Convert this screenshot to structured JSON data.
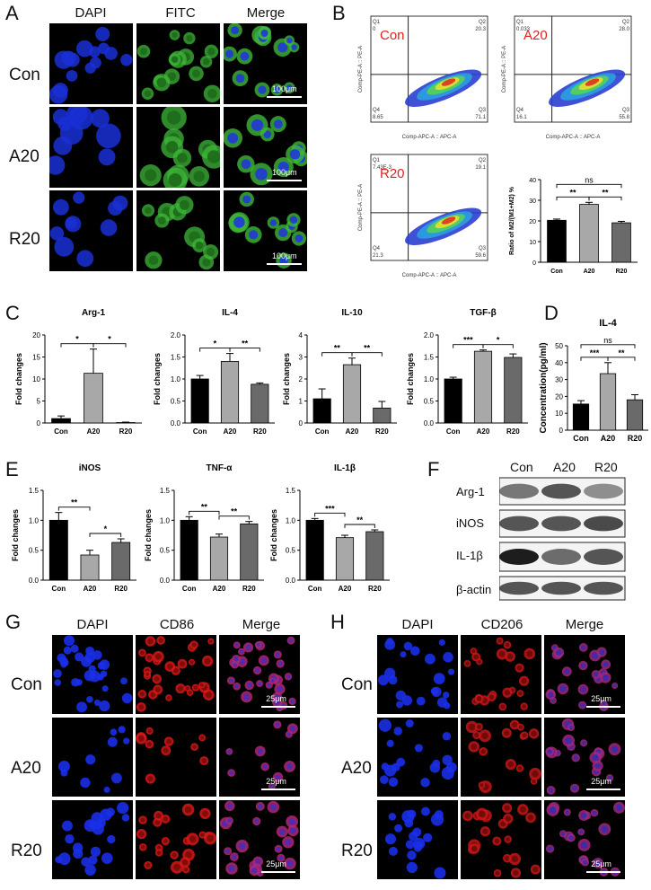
{
  "panelA": {
    "label": "A",
    "cols": [
      "DAPI",
      "FITC",
      "Merge"
    ],
    "rows": [
      "Con",
      "A20",
      "R20"
    ],
    "scale": "100μm"
  },
  "panelB": {
    "label": "B",
    "plots": [
      {
        "name": "Con",
        "q1": "Q1\n0",
        "q2": "Q2\n20.3",
        "q3": "Q3\n71.1",
        "q4": "Q4\n8.65"
      },
      {
        "name": "A20",
        "q1": "Q1\n0.033",
        "q2": "Q2\n28.0",
        "q3": "Q3\n55.8",
        "q4": "Q4\n16.1"
      },
      {
        "name": "R20",
        "q1": "Q1\n7.43E-3",
        "q2": "Q2\n19.1",
        "q3": "Q3\n59.6",
        "q4": "Q4\n21.3"
      }
    ],
    "xaxis": "Comp-APC-A :: APC-A",
    "yaxis": "Comp-PE-A :: PE-A"
  },
  "panelC": {
    "label": "C"
  },
  "panelD": {
    "label": "D"
  },
  "panelE": {
    "label": "E"
  },
  "panelF": {
    "label": "F",
    "cols": [
      "Con",
      "A20",
      "R20"
    ],
    "rows": [
      "Arg-1",
      "iNOS",
      "IL-1β",
      "β-actin"
    ]
  },
  "panelG": {
    "label": "G",
    "cols": [
      "DAPI",
      "CD86",
      "Merge"
    ],
    "rows": [
      "Con",
      "A20",
      "R20"
    ],
    "scale": "25μm"
  },
  "panelH": {
    "label": "H",
    "cols": [
      "DAPI",
      "CD206",
      "Merge"
    ],
    "rows": [
      "Con",
      "A20",
      "R20"
    ],
    "scale": "25μm"
  },
  "chart_data": [
    {
      "type": "bar",
      "title": "",
      "categories": [
        "Con",
        "A20",
        "R20"
      ],
      "values": [
        20.3,
        28.0,
        19.1
      ],
      "errors": [
        0.6,
        1.0,
        0.7
      ],
      "ylabel": "Ratio of M2/(M1+M2) %",
      "ylim": [
        0,
        40
      ],
      "yticks": [
        0,
        10,
        20,
        30,
        40
      ],
      "sig": [
        {
          "a": 0,
          "b": 1,
          "t": "**"
        },
        {
          "a": 1,
          "b": 2,
          "t": "**"
        },
        {
          "a": 0,
          "b": 2,
          "t": "ns"
        }
      ]
    },
    {
      "type": "bar",
      "title": "Arg-1",
      "categories": [
        "Con",
        "A20",
        "R20"
      ],
      "values": [
        1.0,
        11.3,
        0.1
      ],
      "errors": [
        0.6,
        5.5,
        0.1
      ],
      "ylabel": "Fold changes",
      "ylim": [
        0,
        20
      ],
      "yticks": [
        0,
        5,
        10,
        15,
        20
      ],
      "sig": [
        {
          "a": 0,
          "b": 1,
          "t": "*"
        },
        {
          "a": 1,
          "b": 2,
          "t": "*"
        }
      ]
    },
    {
      "type": "bar",
      "title": "IL-4",
      "categories": [
        "Con",
        "A20",
        "R20"
      ],
      "values": [
        1.0,
        1.4,
        0.88
      ],
      "errors": [
        0.08,
        0.18,
        0.03
      ],
      "ylabel": "Fold changes",
      "ylim": [
        0,
        2.0
      ],
      "yticks": [
        0,
        0.5,
        1.0,
        1.5,
        2.0
      ],
      "sig": [
        {
          "a": 0,
          "b": 1,
          "t": "*"
        },
        {
          "a": 1,
          "b": 2,
          "t": "**"
        }
      ]
    },
    {
      "type": "bar",
      "title": "IL-10",
      "categories": [
        "Con",
        "A20",
        "R20"
      ],
      "values": [
        1.1,
        2.65,
        0.68
      ],
      "errors": [
        0.45,
        0.3,
        0.3
      ],
      "ylabel": "Fold changes",
      "ylim": [
        0,
        4
      ],
      "yticks": [
        0,
        1,
        2,
        3,
        4
      ],
      "sig": [
        {
          "a": 0,
          "b": 1,
          "t": "**"
        },
        {
          "a": 1,
          "b": 2,
          "t": "**"
        }
      ]
    },
    {
      "type": "bar",
      "title": "TGF-β",
      "categories": [
        "Con",
        "A20",
        "R20"
      ],
      "values": [
        1.0,
        1.63,
        1.49
      ],
      "errors": [
        0.04,
        0.03,
        0.08
      ],
      "ylabel": "Fold changes",
      "ylim": [
        0,
        2.0
      ],
      "yticks": [
        0,
        0.5,
        1.0,
        1.5,
        2.0
      ],
      "sig": [
        {
          "a": 0,
          "b": 1,
          "t": "***"
        },
        {
          "a": 1,
          "b": 2,
          "t": "*"
        }
      ]
    },
    {
      "type": "bar",
      "title": "IL-4",
      "categories": [
        "Con",
        "A20",
        "R20"
      ],
      "values": [
        15.5,
        33.5,
        18.0
      ],
      "errors": [
        2.0,
        6.5,
        3.0
      ],
      "ylabel": "Concentration(pg/ml)",
      "ylim": [
        0,
        50
      ],
      "yticks": [
        0,
        10,
        20,
        30,
        40,
        50
      ],
      "sig": [
        {
          "a": 0,
          "b": 1,
          "t": "***"
        },
        {
          "a": 1,
          "b": 2,
          "t": "**"
        },
        {
          "a": 0,
          "b": 2,
          "t": "ns"
        }
      ]
    },
    {
      "type": "bar",
      "title": "iNOS",
      "categories": [
        "Con",
        "A20",
        "R20"
      ],
      "values": [
        1.0,
        0.42,
        0.63
      ],
      "errors": [
        0.13,
        0.08,
        0.06
      ],
      "ylabel": "Fold changes",
      "ylim": [
        0,
        1.5
      ],
      "yticks": [
        0,
        0.5,
        1.0,
        1.5
      ],
      "sig": [
        {
          "a": 0,
          "b": 1,
          "t": "**"
        },
        {
          "a": 1,
          "b": 2,
          "t": "*"
        }
      ]
    },
    {
      "type": "bar",
      "title": "TNF-α",
      "categories": [
        "Con",
        "A20",
        "R20"
      ],
      "values": [
        1.0,
        0.72,
        0.94
      ],
      "errors": [
        0.06,
        0.05,
        0.04
      ],
      "ylabel": "Fold changes",
      "ylim": [
        0,
        1.5
      ],
      "yticks": [
        0,
        0.5,
        1.0,
        1.5
      ],
      "sig": [
        {
          "a": 0,
          "b": 1,
          "t": "**"
        },
        {
          "a": 1,
          "b": 2,
          "t": "**"
        }
      ]
    },
    {
      "type": "bar",
      "title": "IL-1β",
      "categories": [
        "Con",
        "A20",
        "R20"
      ],
      "values": [
        1.0,
        0.71,
        0.81
      ],
      "errors": [
        0.03,
        0.04,
        0.03
      ],
      "ylabel": "Fold changes",
      "ylim": [
        0,
        1.5
      ],
      "yticks": [
        0,
        0.5,
        1.0,
        1.5
      ],
      "sig": [
        {
          "a": 0,
          "b": 1,
          "t": "***"
        },
        {
          "a": 1,
          "b": 2,
          "t": "**"
        }
      ]
    }
  ]
}
